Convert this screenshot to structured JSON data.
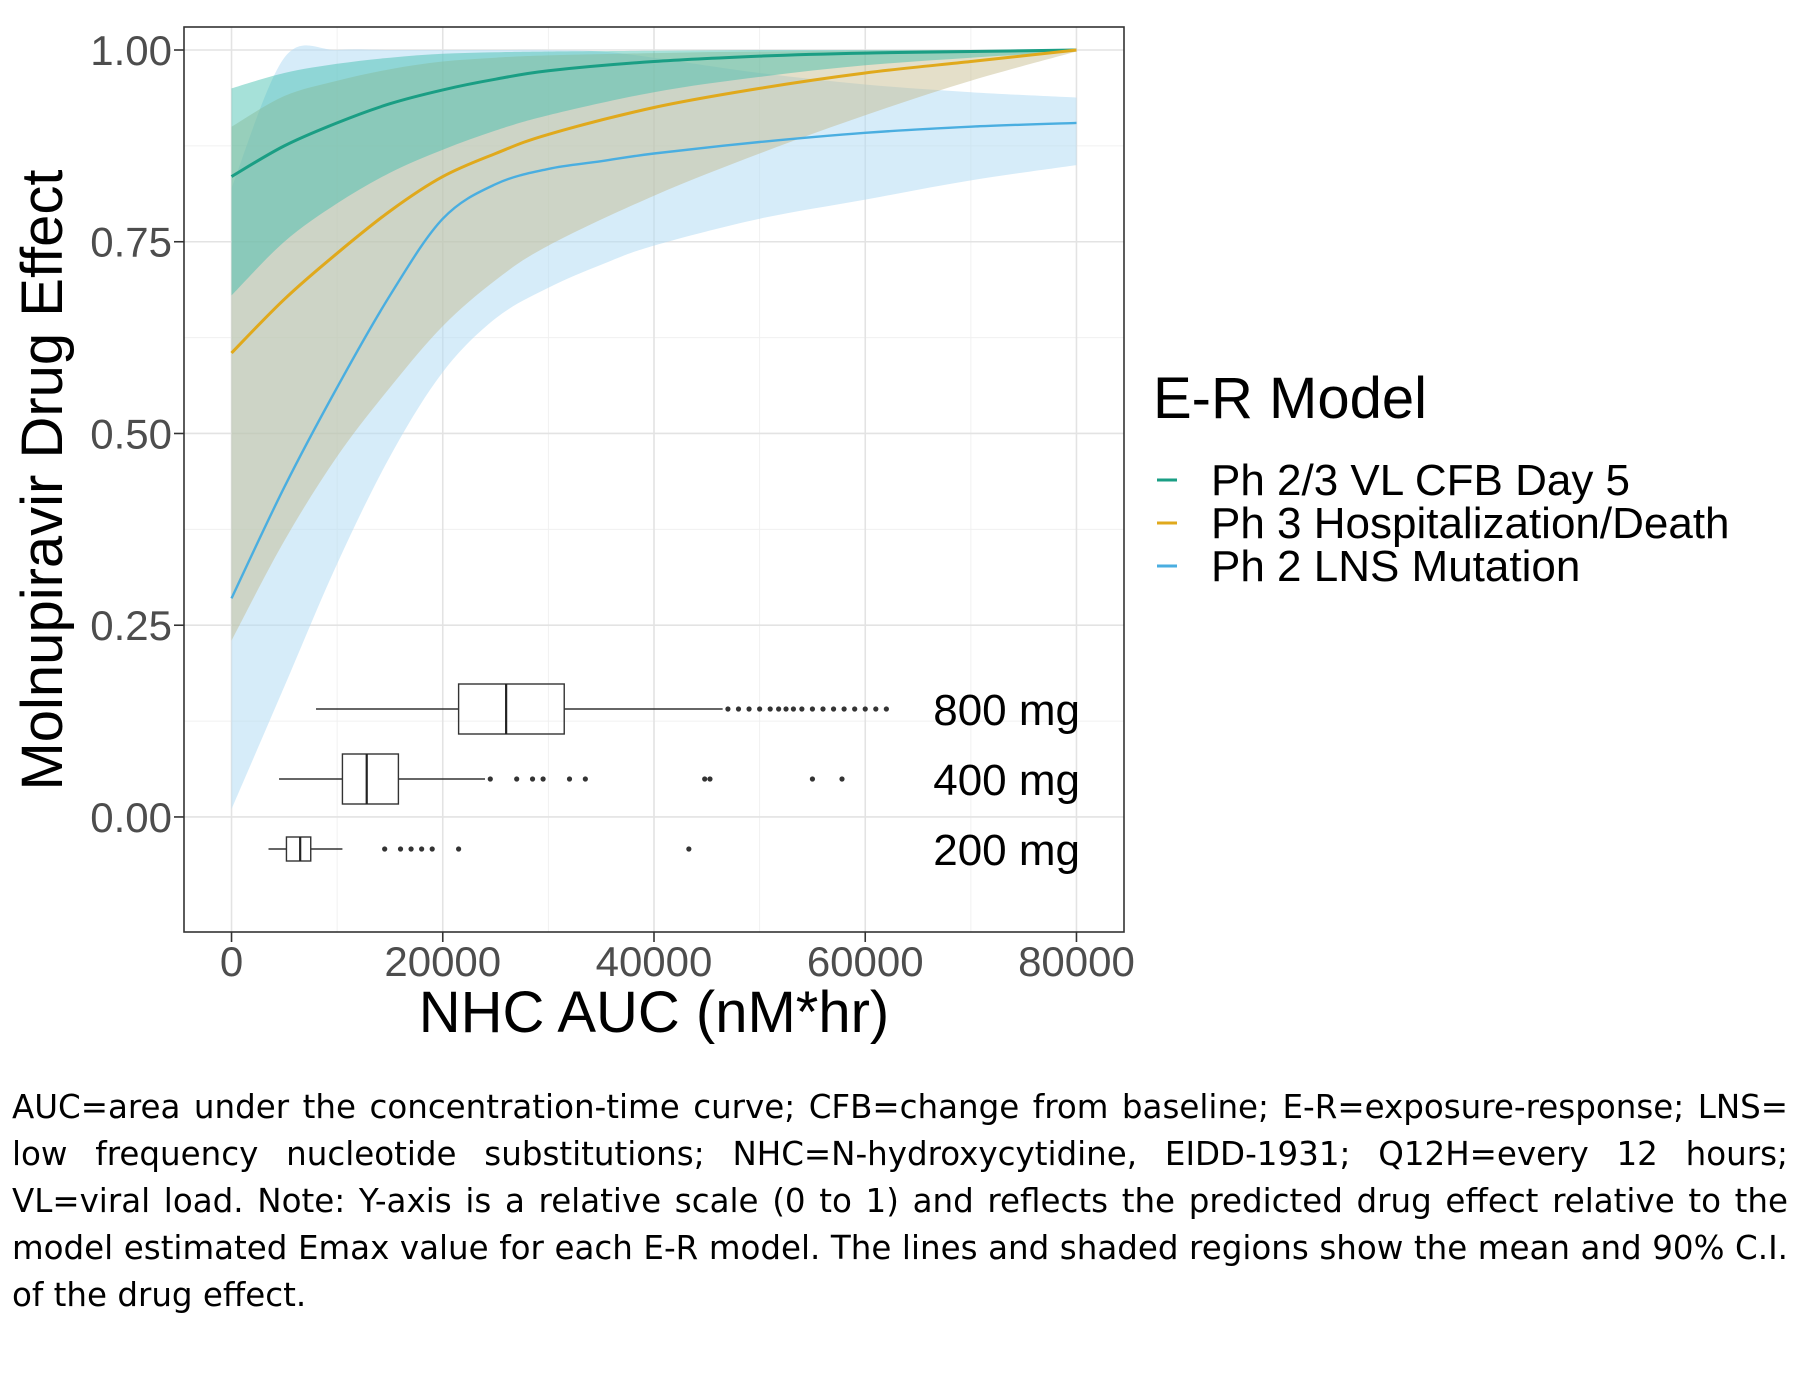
{
  "chart_data": {
    "type": "line",
    "title": "",
    "xlabel": "NHC AUC (nM*hr)",
    "ylabel": "Molnupiravir Drug Effect",
    "xlim": [
      -4500,
      84500
    ],
    "ylim": [
      -0.15,
      1.03
    ],
    "x_ticks": [
      0,
      20000,
      40000,
      60000,
      80000
    ],
    "x_tick_labels": [
      "0",
      "20000",
      "40000",
      "60000",
      "80000"
    ],
    "y_ticks": [
      0,
      0.25,
      0.5,
      0.75,
      1.0
    ],
    "y_tick_labels": [
      "0.00",
      "0.25",
      "0.50",
      "0.75",
      "1.00"
    ],
    "grid": true,
    "legend": {
      "title": "E-R Model",
      "position": "right"
    },
    "series": [
      {
        "name": "Ph 2/3 VL CFB Day 5",
        "color": "#1a9e84",
        "fill": "#39bcaa",
        "x": [
          0,
          5000,
          10000,
          15000,
          20000,
          25000,
          30000,
          40000,
          50000,
          60000,
          70000,
          80000
        ],
        "y": [
          0.835,
          0.875,
          0.905,
          0.93,
          0.948,
          0.962,
          0.973,
          0.985,
          0.992,
          0.996,
          0.998,
          1.0
        ],
        "lower": [
          0.68,
          0.75,
          0.8,
          0.84,
          0.87,
          0.895,
          0.915,
          0.945,
          0.965,
          0.98,
          0.99,
          0.998
        ],
        "upper": [
          0.95,
          0.97,
          0.982,
          0.99,
          0.995,
          0.997,
          0.998,
          0.999,
          1.0,
          1.0,
          1.0,
          1.0
        ]
      },
      {
        "name": "Ph 3 Hospitalization/Death",
        "color": "#e0a91c",
        "fill": "#c4b888",
        "x": [
          0,
          5000,
          10000,
          15000,
          20000,
          25000,
          30000,
          40000,
          50000,
          60000,
          70000,
          80000
        ],
        "y": [
          0.605,
          0.675,
          0.735,
          0.79,
          0.835,
          0.865,
          0.89,
          0.925,
          0.95,
          0.97,
          0.985,
          1.0
        ],
        "lower": [
          0.23,
          0.36,
          0.47,
          0.56,
          0.64,
          0.7,
          0.745,
          0.81,
          0.865,
          0.915,
          0.96,
          0.998
        ],
        "upper": [
          0.9,
          0.94,
          0.96,
          0.975,
          0.985,
          0.99,
          0.993,
          0.996,
          0.998,
          0.999,
          1.0,
          1.0
        ]
      },
      {
        "name": "Ph 2 LNS Mutation",
        "color": "#4aaee0",
        "fill": "#b4dcf4",
        "x": [
          0,
          5000,
          10000,
          15000,
          20000,
          25000,
          30000,
          35000,
          40000,
          50000,
          60000,
          70000,
          80000
        ],
        "y": [
          0.285,
          0.43,
          0.56,
          0.68,
          0.78,
          0.825,
          0.845,
          0.855,
          0.865,
          0.88,
          0.892,
          0.9,
          0.905
        ],
        "lower": [
          0.01,
          0.17,
          0.33,
          0.47,
          0.58,
          0.65,
          0.69,
          0.72,
          0.745,
          0.78,
          0.805,
          0.83,
          0.85
        ],
        "upper": [
          0.82,
          0.99,
          1.0,
          1.0,
          1.0,
          1.0,
          1.0,
          0.998,
          0.99,
          0.97,
          0.955,
          0.945,
          0.938
        ]
      }
    ],
    "boxplots": [
      {
        "label": "800 mg",
        "whisker_low": 8000,
        "q1": 21500,
        "median": 26000,
        "q3": 31500,
        "whisker_high": 46500,
        "outliers": [
          47000,
          48000,
          49000,
          50000,
          51000,
          51800,
          52500,
          53200,
          54000,
          55000,
          56000,
          57000,
          58000,
          59000,
          60000,
          61000,
          62000
        ]
      },
      {
        "label": "400 mg",
        "whisker_low": 4500,
        "q1": 10500,
        "median": 12800,
        "q3": 15800,
        "whisker_high": 24000,
        "outliers": [
          24500,
          27000,
          28500,
          29500,
          32000,
          33500,
          44800,
          45300,
          55000,
          57800
        ]
      },
      {
        "label": "200 mg",
        "whisker_low": 3500,
        "q1": 5200,
        "median": 6500,
        "q3": 7500,
        "whisker_high": 10500,
        "outliers": [
          14500,
          16000,
          17000,
          18000,
          19000,
          21500,
          43300
        ]
      }
    ]
  },
  "footnote": "AUC=area under the concentration-time curve; CFB=change from baseline; E-R=exposure-response; LNS= low frequency nucleotide substitutions; NHC=N-hydroxycytidine, EIDD-1931; Q12H=every 12 hours; VL=viral load. Note: Y-axis is a relative scale (0 to 1) and reflects the predicted drug effect relative to the model estimated Emax value for each E-R model. The lines and shaded regions show the mean and 90% C.I. of the drug effect."
}
